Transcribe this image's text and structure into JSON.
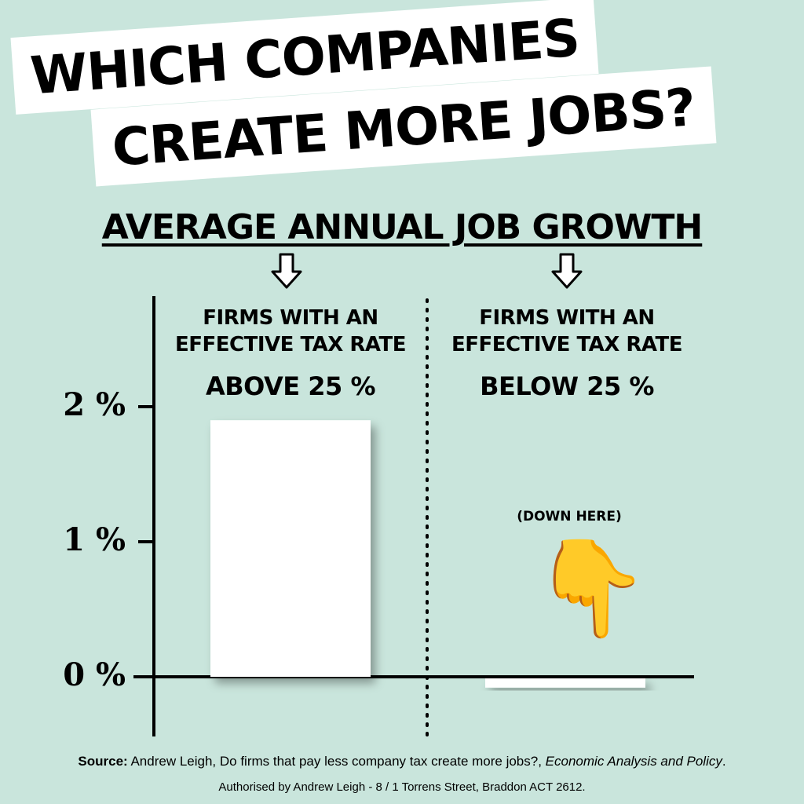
{
  "header": {
    "title_line1": "WHICH COMPANIES",
    "title_line2": "CREATE MORE JOBS?",
    "subtitle": "AVERAGE ANNUAL JOB GROWTH"
  },
  "chart_data": {
    "type": "bar",
    "categories": [
      {
        "line1": "FIRMS WITH AN",
        "line2": "EFFECTIVE TAX RATE",
        "line3": "ABOVE 25 %"
      },
      {
        "line1": "FIRMS WITH AN",
        "line2": "EFFECTIVE TAX RATE",
        "line3": "BELOW 25 %"
      }
    ],
    "values": [
      1.9,
      -0.08
    ],
    "ylim": [
      -0.45,
      2.8
    ],
    "yticks": [
      {
        "value": 0,
        "label": "0 %"
      },
      {
        "value": 1,
        "label": "1 %"
      },
      {
        "value": 2,
        "label": "2 %"
      }
    ],
    "annotation": "(DOWN HERE)",
    "grid": false,
    "colors": {
      "bar": "#ffffff",
      "background": "#c9e5dc",
      "axis": "#000000"
    }
  },
  "icons": {
    "hand": "pointing-down-hand-icon",
    "arrows": "down-arrow-icon"
  },
  "footer": {
    "source_label": "Source:",
    "source_text": " Andrew Leigh, Do firms that pay less company tax create more jobs?, ",
    "source_journal": "Economic Analysis and Policy",
    "source_end": ".",
    "authorised": "Authorised by Andrew Leigh - 8 / 1 Torrens Street, Braddon ACT 2612."
  }
}
